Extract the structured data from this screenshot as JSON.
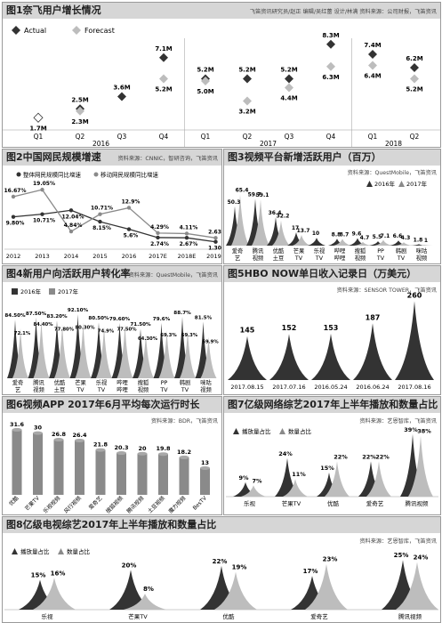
{
  "colors": {
    "dark": "#333333",
    "mid": "#8a8a8a",
    "light": "#bdbdbd",
    "header": "#d6d6d6"
  },
  "panels": [
    {
      "title": "图1奈飞用户增长情况",
      "source": "飞笛资讯研究员/赵正  编辑/吴红蕾  设计/林满  资料来源：公司财报，飞笛资讯"
    },
    {
      "title": "图2中国网民规模增速",
      "source": "资料来源：CNNIC，智研咨询，飞笛资讯"
    },
    {
      "title": "图3视频平台新增活跃用户（百万）",
      "source": "资料来源：QuestMobile，飞笛资讯"
    },
    {
      "title": "图4新用户向活跃用户转化率",
      "source": "资料来源：QuestMobile，飞笛资讯"
    },
    {
      "title": "图5HBO NOW单日收入记录日（万美元）",
      "source": "资料来源：SENSOR TOWER，飞笛资讯"
    },
    {
      "title": "图6视频APP 2017年6月平均每次运行时长",
      "source": "资料来源：BDR，飞笛资讯"
    },
    {
      "title": "图7亿级网络综艺2017年上半年播放和数量占比",
      "source": "资料来源：艺恩智库，飞笛资讯"
    },
    {
      "title": "图8亿级电视综艺2017年上半年播放和数量占比",
      "source": "资料来源：艺恩智库，飞笛资讯"
    }
  ],
  "chart_data": [
    {
      "type": "scatter",
      "id": "fig1",
      "legend": [
        "Actual",
        "Forecast"
      ],
      "categories": [
        "Q1",
        "Q2",
        "Q3",
        "Q4",
        "Q1",
        "Q2",
        "Q3",
        "Q4",
        "Q1",
        "Q2"
      ],
      "years": [
        "2016",
        "2017",
        "2018"
      ],
      "series": [
        {
          "name": "Actual",
          "values": [
            null,
            "2.5M",
            "3.6M",
            "7.1M",
            "5.2M",
            "5.2M",
            "5.2M",
            "8.3M",
            "7.4M",
            "6.2M"
          ]
        },
        {
          "name": "Forecast",
          "values": [
            "1.7M",
            "2.3M",
            null,
            "5.2M",
            "5.0M",
            "3.2M",
            "4.4M",
            "6.3M",
            "6.4M",
            "5.2M"
          ]
        }
      ]
    },
    {
      "type": "line",
      "id": "fig2",
      "legend": [
        "整体网民规模同比增速",
        "移动网民规模同比增速"
      ],
      "x": [
        "2012",
        "2013",
        "2014",
        "2015",
        "2016",
        "2017E",
        "2018E",
        "2019E"
      ],
      "series": [
        {
          "name": "整体网民规模同比增速",
          "labels": [
            "9.80%",
            "10.71%",
            "12.04%",
            "8.15%",
            "5.6%",
            "2.74%",
            "2.67%",
            "1.30%"
          ],
          "values": [
            9.8,
            10.71,
            12.04,
            8.15,
            5.6,
            2.74,
            2.67,
            1.3
          ]
        },
        {
          "name": "移动网民规模同比增速",
          "labels": [
            "16.67%",
            "19.05%",
            "4.84%",
            "10.71%",
            "12.9%",
            "4.29%",
            "4.11%",
            "2.63%"
          ],
          "values": [
            16.67,
            19.05,
            4.84,
            10.71,
            12.9,
            4.29,
            4.11,
            2.63
          ]
        }
      ]
    },
    {
      "type": "area",
      "id": "fig3",
      "legend": [
        "2016年",
        "2017年"
      ],
      "categories": [
        "爱奇艺",
        "腾讯视频",
        "优酷土豆",
        "芒果TV",
        "乐视TV",
        "哔哩哔哩",
        "搜狐视频",
        "PPTV",
        "韩剧TV",
        "咪咕视频"
      ],
      "series": [
        {
          "name": "2016年",
          "values": [
            50.3,
            59.7,
            36.4,
            17.0,
            10.0,
            8.8,
            9.6,
            5.5,
            6.6,
            1.8
          ]
        },
        {
          "name": "2017年",
          "values": [
            65.4,
            59.1,
            32.2,
            13.7,
            null,
            8.7,
            4.7,
            7.1,
            4.3,
            1.0
          ]
        }
      ]
    },
    {
      "type": "area",
      "id": "fig4",
      "legend": [
        "2016年",
        "2017年"
      ],
      "categories": [
        "爱奇艺",
        "腾讯视频",
        "优酷土豆",
        "芒果TV",
        "乐视TV",
        "哔哩哔哩",
        "搜狐视频",
        "PPTV",
        "韩剧TV",
        "咪咕视频"
      ],
      "series": [
        {
          "name": "2016年",
          "labels": [
            "84.50%",
            "87.50%",
            "83.20%",
            "92.10%",
            "80.50%",
            "79.60%",
            "71.50%",
            "79.6%",
            "88.7%",
            "81.5%"
          ],
          "values": [
            84.5,
            87.5,
            83.2,
            92.1,
            80.5,
            79.6,
            71.5,
            79.6,
            88.7,
            81.5
          ]
        },
        {
          "name": "2017年",
          "labels": [
            "72.1%",
            "84.40%",
            "77.80%",
            "80.30%",
            "74.9%",
            "77.50%",
            "64.30%",
            "69.3%",
            "69.3%",
            "59.9%"
          ],
          "values": [
            72.1,
            84.4,
            77.8,
            80.3,
            74.9,
            77.5,
            64.3,
            69.3,
            69.3,
            59.9
          ]
        }
      ]
    },
    {
      "type": "area",
      "id": "fig5",
      "categories": [
        "2017.08.15",
        "2017.07.16",
        "2016.05.24",
        "2016.06.24",
        "2017.08.16"
      ],
      "values": [
        145,
        152,
        153,
        187,
        260
      ]
    },
    {
      "type": "bar",
      "id": "fig6",
      "categories": [
        "优酷",
        "芒果TV",
        "乐视视频",
        "风行视频",
        "爱奇艺",
        "搜狐视频",
        "腾讯视频",
        "土豆视频",
        "魔力视频",
        "BesTV"
      ],
      "values": [
        31.6,
        30,
        26.8,
        26.4,
        21.8,
        20.3,
        20,
        19.8,
        18.2,
        13
      ]
    },
    {
      "type": "area",
      "id": "fig7",
      "legend": [
        "播放量占比",
        "数量占比"
      ],
      "categories": [
        "乐视",
        "芒果TV",
        "优酷",
        "爱奇艺",
        "腾讯视频"
      ],
      "series": [
        {
          "name": "播放量占比",
          "labels": [
            "9%",
            "24%",
            "15%",
            "22%",
            "39%"
          ],
          "values": [
            9,
            24,
            15,
            22,
            39
          ]
        },
        {
          "name": "数量占比",
          "labels": [
            "7%",
            "11%",
            "22%",
            "22%",
            "38%"
          ],
          "values": [
            7,
            11,
            22,
            22,
            38
          ]
        }
      ]
    },
    {
      "type": "area",
      "id": "fig8",
      "legend": [
        "播放量占比",
        "数量占比"
      ],
      "categories": [
        "乐视",
        "芒果TV",
        "优酷",
        "爱奇艺",
        "腾讯视频"
      ],
      "series": [
        {
          "name": "播放量占比",
          "labels": [
            "15%",
            "20%",
            "22%",
            "17%",
            "25%"
          ],
          "values": [
            15,
            20,
            22,
            17,
            25
          ]
        },
        {
          "name": "数量占比",
          "labels": [
            "16%",
            "8%",
            "19%",
            "23%",
            "24%"
          ],
          "values": [
            16,
            8,
            19,
            23,
            24
          ]
        }
      ]
    }
  ]
}
